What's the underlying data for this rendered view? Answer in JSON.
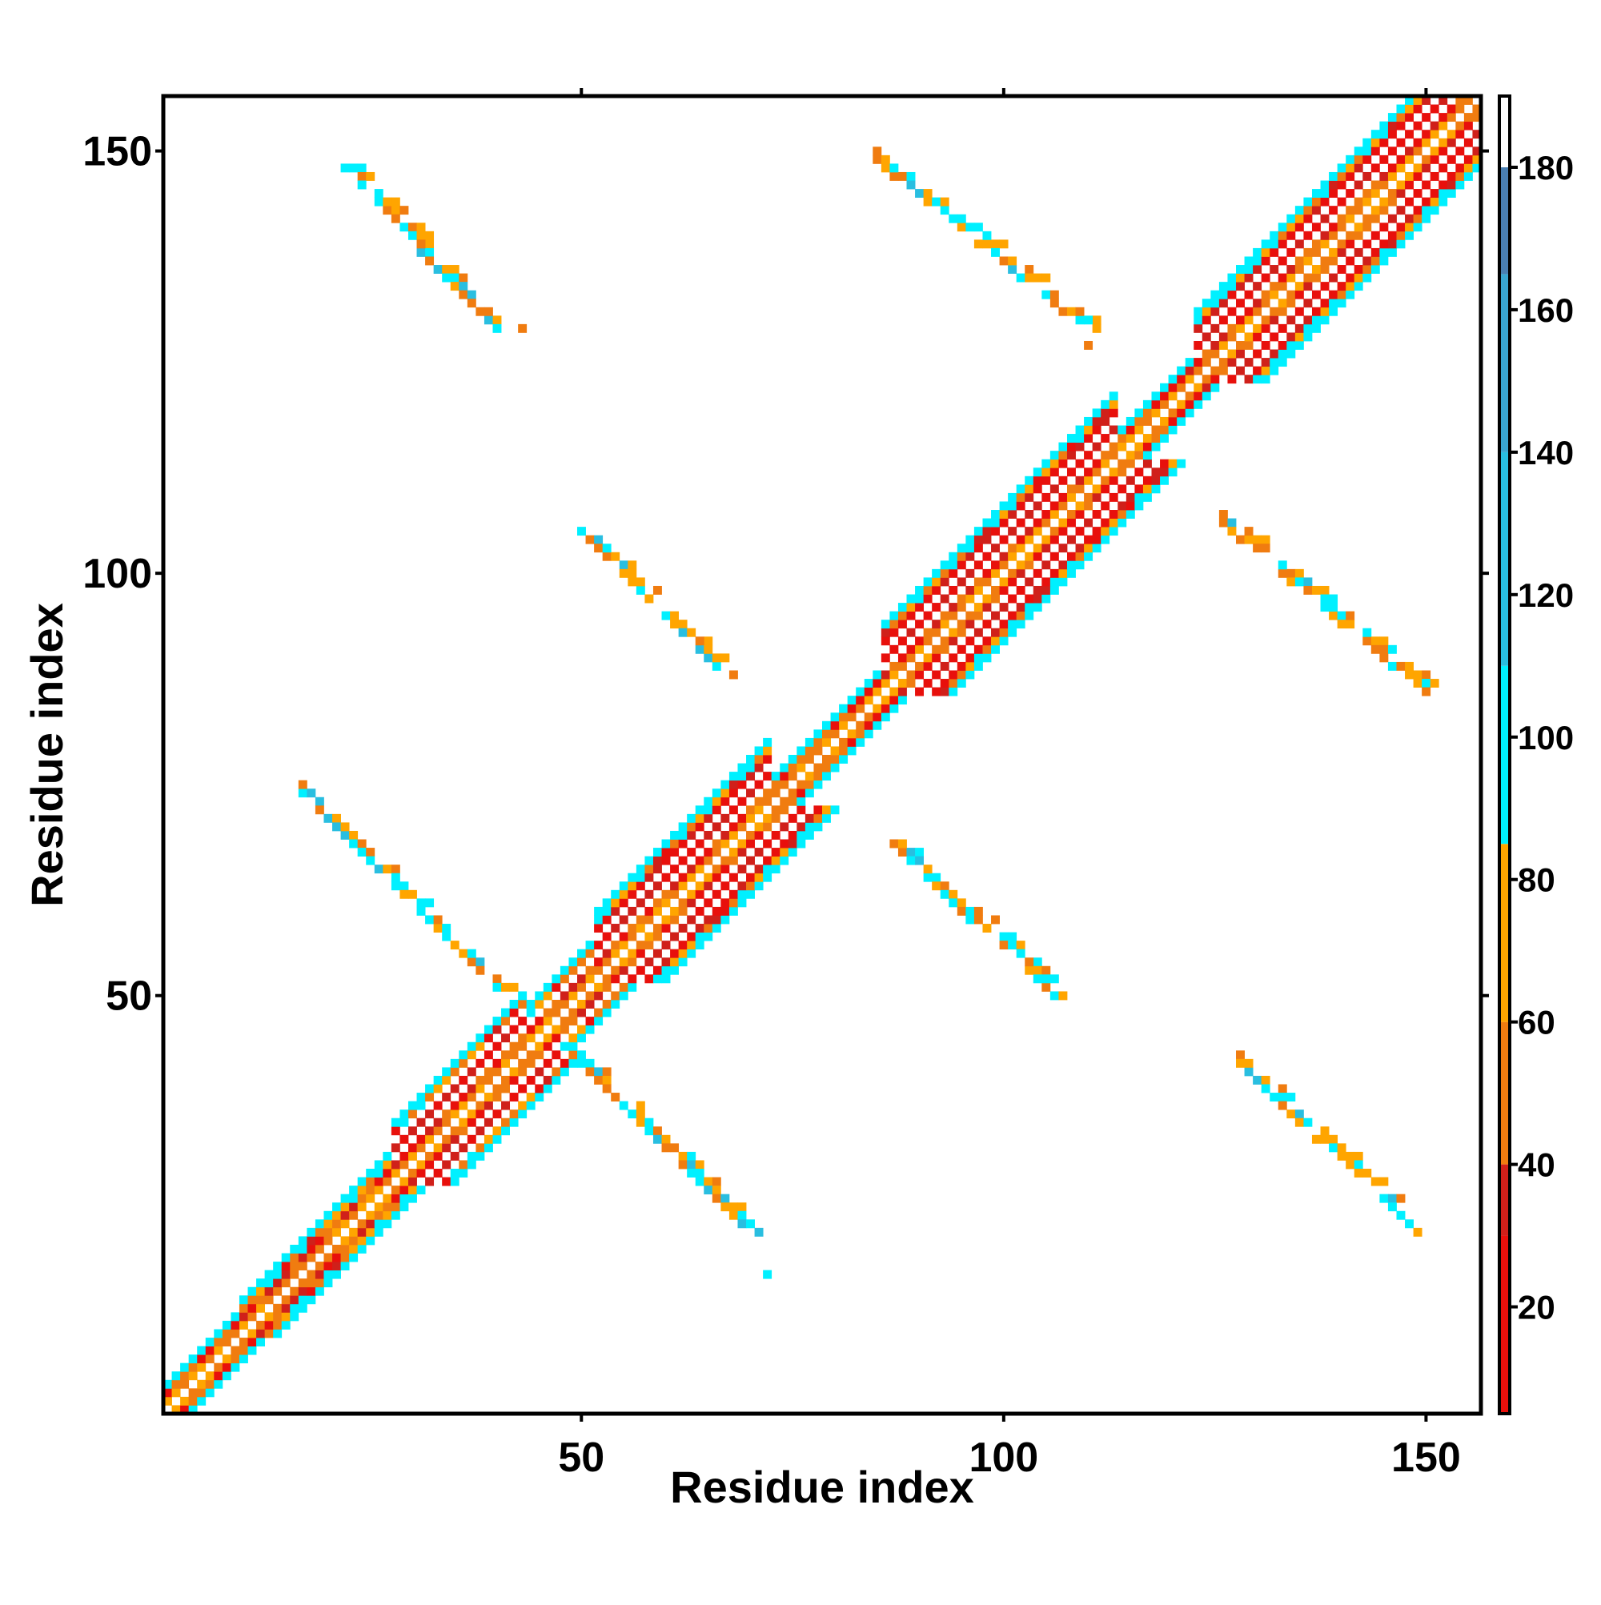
{
  "chart_data": {
    "type": "heatmap",
    "title": "",
    "xlabel": "Residue index",
    "ylabel": "Residue index",
    "xlim": [
      0.5,
      156.5
    ],
    "ylim": [
      0.5,
      156.5
    ],
    "x_ticks": [
      50,
      100,
      150
    ],
    "y_ticks": [
      50,
      100,
      150
    ],
    "grid": false,
    "colorbar": {
      "min": 5,
      "max": 190,
      "ticks": [
        20,
        40,
        60,
        80,
        100,
        120,
        140,
        160,
        180
      ],
      "bands": [
        {
          "from": 5,
          "to": 30,
          "color": "#e8100c"
        },
        {
          "from": 30,
          "to": 40,
          "color": "#d0201a"
        },
        {
          "from": 40,
          "to": 60,
          "color": "#f07c10"
        },
        {
          "from": 60,
          "to": 85,
          "color": "#ffa500"
        },
        {
          "from": 85,
          "to": 110,
          "color": "#00f0ff"
        },
        {
          "from": 110,
          "to": 140,
          "color": "#29bee0"
        },
        {
          "from": 140,
          "to": 165,
          "color": "#3aa5d0"
        },
        {
          "from": 165,
          "to": 180,
          "color": "#4a7fb2"
        },
        {
          "from": 180,
          "to": 190,
          "color": "#ffffff"
        }
      ]
    },
    "diagonal_band": {
      "description_free": true,
      "segments": [
        {
          "from": 1,
          "to": 10,
          "width": 3
        },
        {
          "from": 10,
          "to": 28,
          "width": 4
        },
        {
          "from": 28,
          "to": 44,
          "width": 7
        },
        {
          "from": 44,
          "to": 52,
          "width": 5
        },
        {
          "from": 52,
          "to": 73,
          "width": 8
        },
        {
          "from": 73,
          "to": 86,
          "width": 3
        },
        {
          "from": 86,
          "to": 114,
          "width": 8
        },
        {
          "from": 114,
          "to": 123,
          "width": 3
        },
        {
          "from": 123,
          "to": 156,
          "width": 8
        }
      ]
    },
    "strands": [
      {
        "x0": 22,
        "y0": 148,
        "x1": 40,
        "y1": 129
      },
      {
        "x0": 85,
        "y0": 149,
        "x1": 110,
        "y1": 129
      },
      {
        "x0": 50,
        "y0": 105,
        "x1": 66,
        "y1": 89
      },
      {
        "x0": 125,
        "y0": 107,
        "x1": 150,
        "y1": 86
      },
      {
        "x0": 17,
        "y0": 74,
        "x1": 40,
        "y1": 51
      },
      {
        "x0": 87,
        "y0": 68,
        "x1": 106,
        "y1": 50
      },
      {
        "x0": 50,
        "y0": 42,
        "x1": 70,
        "y1": 22
      },
      {
        "x0": 127,
        "y0": 43,
        "x1": 149,
        "y1": 22
      }
    ],
    "isolated_points": [
      {
        "x": 17,
        "y": 74,
        "value": 100
      },
      {
        "x": 72,
        "y": 17,
        "value": 100
      },
      {
        "x": 68,
        "y": 88,
        "value": 50
      },
      {
        "x": 87,
        "y": 68,
        "value": 50
      },
      {
        "x": 43,
        "y": 129,
        "value": 50
      },
      {
        "x": 110,
        "y": 127,
        "value": 50
      }
    ]
  }
}
